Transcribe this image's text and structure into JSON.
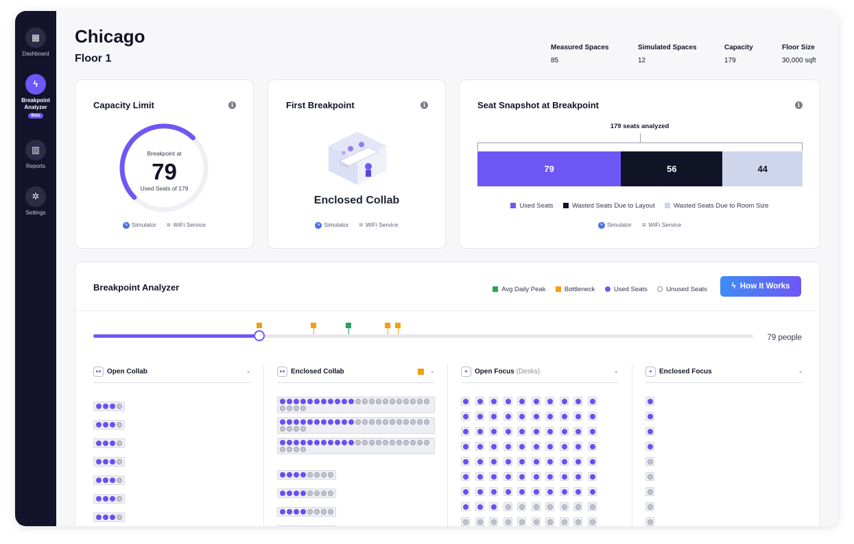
{
  "sidebar": {
    "items": [
      {
        "label": "Dashboard",
        "icon": "dashboard-icon"
      },
      {
        "label": "Breakpoint Analyzer",
        "icon": "lightning-icon",
        "badge": "Beta"
      },
      {
        "label": "Reports",
        "icon": "reports-icon"
      },
      {
        "label": "Settings",
        "icon": "gear-icon"
      }
    ]
  },
  "header": {
    "title": "Chicago",
    "subtitle": "Floor 1",
    "stats": [
      {
        "label": "Measured Spaces",
        "value": "85"
      },
      {
        "label": "Simulated Spaces",
        "value": "12"
      },
      {
        "label": "Capacity",
        "value": "179"
      },
      {
        "label": "Floor Size",
        "value": "30,000 sqft"
      }
    ]
  },
  "sources": {
    "simulator": "Simulator",
    "wifi": "WiFi Service"
  },
  "capacity_card": {
    "title": "Capacity Limit",
    "gauge_top": "Breakpoint at",
    "value": "79",
    "gauge_bottom": "Used Seats of 179",
    "gauge_fraction": 0.4413
  },
  "breakpoint_card": {
    "title": "First Breakpoint",
    "space_name": "Enclosed Collab"
  },
  "snapshot_card": {
    "title": "Seat Snapshot at Breakpoint",
    "analyzed": "179 seats analyzed",
    "segments": [
      {
        "label": "Used Seats",
        "value": 79,
        "text": "79",
        "color": "#6e57f5",
        "text_color": "#ffffff"
      },
      {
        "label": "Wasted Seats Due to Layout",
        "value": 56,
        "text": "56",
        "color": "#111427",
        "text_color": "#ffffff"
      },
      {
        "label": "Wasted Seats Due to Room Size",
        "value": 44,
        "text": "44",
        "color": "#cfd5ec",
        "text_color": "#111427"
      }
    ]
  },
  "analyzer": {
    "title": "Breakpoint Analyzer",
    "legend": [
      {
        "label": "Avg Daily Peak",
        "color": "#2ea05a",
        "shape": "square"
      },
      {
        "label": "Bottleneck",
        "color": "#f59e0b",
        "shape": "square"
      },
      {
        "label": "Used Seats",
        "color": "#6e57f5",
        "shape": "dot"
      },
      {
        "label": "Unused Seats",
        "color": "#ffffff",
        "shape": "ring"
      }
    ],
    "button": "How It Works",
    "slider_fraction": 0.2516,
    "slider_value": "79 people",
    "columns": [
      {
        "title": "Open Collab",
        "suffix": "",
        "icon": "group-icon"
      },
      {
        "title": "Enclosed Collab",
        "suffix": "",
        "icon": "group-icon",
        "bottleneck": true
      },
      {
        "title": "Open Focus",
        "suffix": "(Desks)",
        "icon": "person-icon"
      },
      {
        "title": "Enclosed Focus",
        "suffix": "",
        "icon": "person-icon"
      }
    ]
  }
}
